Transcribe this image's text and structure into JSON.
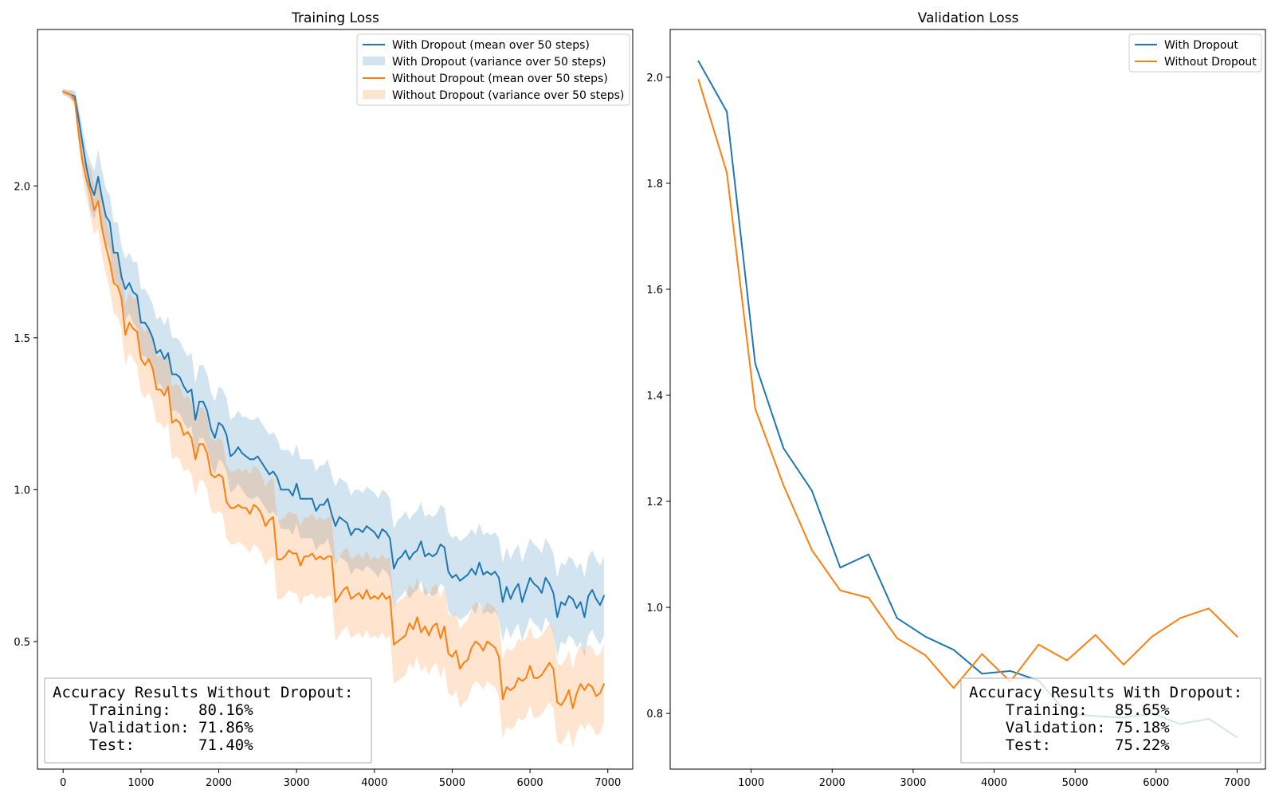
{
  "chart_data": [
    {
      "type": "line",
      "title": "Training Loss",
      "xlabel": "",
      "ylabel": "",
      "xlim": [
        -330,
        7320
      ],
      "ylim": [
        0.08,
        2.515
      ],
      "x_ticks": [
        0,
        1000,
        2000,
        3000,
        4000,
        5000,
        6000,
        7000
      ],
      "y_ticks": [
        0.5,
        1.0,
        1.5,
        2.0
      ],
      "x_tick_labels": [
        "0",
        "1000",
        "2000",
        "3000",
        "4000",
        "5000",
        "6000",
        "7000"
      ],
      "y_tick_labels": [
        "0.5",
        "1.0",
        "1.5",
        "2.0"
      ],
      "grid": false,
      "legend_position": "top-right",
      "x": [
        0,
        50,
        100,
        150,
        200,
        250,
        300,
        350,
        400,
        450,
        500,
        550,
        600,
        650,
        700,
        750,
        800,
        850,
        900,
        950,
        1000,
        1050,
        1100,
        1150,
        1200,
        1250,
        1300,
        1350,
        1400,
        1450,
        1500,
        1550,
        1600,
        1650,
        1700,
        1750,
        1800,
        1850,
        1900,
        1950,
        2000,
        2050,
        2100,
        2150,
        2200,
        2250,
        2300,
        2350,
        2400,
        2450,
        2500,
        2550,
        2600,
        2650,
        2700,
        2750,
        2800,
        2850,
        2900,
        2950,
        3000,
        3050,
        3100,
        3150,
        3200,
        3250,
        3300,
        3350,
        3400,
        3450,
        3500,
        3550,
        3600,
        3650,
        3700,
        3750,
        3800,
        3850,
        3900,
        3950,
        4000,
        4050,
        4100,
        4150,
        4200,
        4250,
        4300,
        4350,
        4400,
        4450,
        4500,
        4550,
        4600,
        4650,
        4700,
        4750,
        4800,
        4850,
        4900,
        4950,
        5000,
        5050,
        5100,
        5150,
        5200,
        5250,
        5300,
        5350,
        5400,
        5450,
        5500,
        5550,
        5600,
        5650,
        5700,
        5750,
        5800,
        5850,
        5900,
        5950,
        6000,
        6050,
        6100,
        6150,
        6200,
        6250,
        6300,
        6350,
        6400,
        6450,
        6500,
        6550,
        6600,
        6650,
        6700,
        6750,
        6800,
        6850,
        6900,
        6950
      ],
      "series": [
        {
          "name": "With Dropout (mean over 50 steps)",
          "kind": "line",
          "color": "#1f77b4",
          "values": [
            2.31,
            2.305,
            2.3,
            2.295,
            2.22,
            2.14,
            2.06,
            2.0,
            1.97,
            2.03,
            1.96,
            1.9,
            1.88,
            1.78,
            1.78,
            1.7,
            1.66,
            1.68,
            1.65,
            1.64,
            1.55,
            1.55,
            1.53,
            1.5,
            1.45,
            1.46,
            1.43,
            1.45,
            1.38,
            1.38,
            1.37,
            1.34,
            1.32,
            1.33,
            1.23,
            1.29,
            1.29,
            1.26,
            1.2,
            1.17,
            1.22,
            1.21,
            1.18,
            1.11,
            1.12,
            1.14,
            1.12,
            1.11,
            1.1,
            1.1,
            1.11,
            1.09,
            1.07,
            1.05,
            1.06,
            1.04,
            1.0,
            1.0,
            1.0,
            0.98,
            1.02,
            0.97,
            0.97,
            0.97,
            0.97,
            0.93,
            0.95,
            0.95,
            0.97,
            0.92,
            0.88,
            0.91,
            0.9,
            0.89,
            0.85,
            0.87,
            0.87,
            0.86,
            0.88,
            0.87,
            0.86,
            0.84,
            0.87,
            0.86,
            0.84,
            0.74,
            0.77,
            0.78,
            0.8,
            0.77,
            0.79,
            0.8,
            0.83,
            0.78,
            0.79,
            0.78,
            0.79,
            0.82,
            0.81,
            0.73,
            0.71,
            0.72,
            0.7,
            0.71,
            0.72,
            0.74,
            0.72,
            0.76,
            0.72,
            0.73,
            0.72,
            0.73,
            0.71,
            0.63,
            0.68,
            0.64,
            0.67,
            0.69,
            0.63,
            0.67,
            0.71,
            0.69,
            0.68,
            0.66,
            0.71,
            0.69,
            0.66,
            0.58,
            0.63,
            0.62,
            0.65,
            0.64,
            0.61,
            0.63,
            0.58,
            0.65,
            0.67,
            0.64,
            0.62,
            0.65
          ]
        },
        {
          "name": "With Dropout (variance over 50 steps)",
          "kind": "band",
          "color": "#1f77b4",
          "opacity": 0.2,
          "center_series": 0,
          "half_width": [
            0.01,
            0.01,
            0.015,
            0.02,
            0.04,
            0.05,
            0.06,
            0.08,
            0.08,
            0.09,
            0.09,
            0.09,
            0.09,
            0.1,
            0.1,
            0.1,
            0.1,
            0.1,
            0.1,
            0.11,
            0.11,
            0.11,
            0.11,
            0.11,
            0.11,
            0.11,
            0.11,
            0.12,
            0.12,
            0.12,
            0.12,
            0.12,
            0.12,
            0.12,
            0.12,
            0.12,
            0.12,
            0.12,
            0.12,
            0.12,
            0.12,
            0.12,
            0.12,
            0.12,
            0.12,
            0.12,
            0.12,
            0.13,
            0.13,
            0.13,
            0.13,
            0.13,
            0.13,
            0.13,
            0.13,
            0.13,
            0.13,
            0.13,
            0.13,
            0.13,
            0.13,
            0.13,
            0.13,
            0.13,
            0.13,
            0.13,
            0.13,
            0.13,
            0.13,
            0.13,
            0.13,
            0.13,
            0.13,
            0.13,
            0.13,
            0.13,
            0.13,
            0.13,
            0.13,
            0.13,
            0.13,
            0.13,
            0.13,
            0.13,
            0.13,
            0.13,
            0.13,
            0.13,
            0.13,
            0.13,
            0.13,
            0.13,
            0.13,
            0.13,
            0.13,
            0.13,
            0.13,
            0.13,
            0.13,
            0.13,
            0.13,
            0.13,
            0.13,
            0.13,
            0.13,
            0.13,
            0.13,
            0.13,
            0.13,
            0.13,
            0.13,
            0.13,
            0.13,
            0.13,
            0.13,
            0.13,
            0.13,
            0.13,
            0.13,
            0.13,
            0.13,
            0.13,
            0.13,
            0.13,
            0.13,
            0.13,
            0.13,
            0.13,
            0.13,
            0.13,
            0.13,
            0.13,
            0.13,
            0.13,
            0.13,
            0.13,
            0.13,
            0.13,
            0.13,
            0.13
          ]
        },
        {
          "name": "Without Dropout (mean over 50 steps)",
          "kind": "line",
          "color": "#ff7f0e",
          "values": [
            2.31,
            2.305,
            2.3,
            2.28,
            2.17,
            2.08,
            2.02,
            1.98,
            1.92,
            1.95,
            1.86,
            1.8,
            1.75,
            1.68,
            1.67,
            1.63,
            1.51,
            1.55,
            1.53,
            1.52,
            1.43,
            1.41,
            1.43,
            1.4,
            1.33,
            1.33,
            1.31,
            1.34,
            1.22,
            1.23,
            1.22,
            1.18,
            1.19,
            1.17,
            1.1,
            1.15,
            1.15,
            1.12,
            1.05,
            1.04,
            1.05,
            1.04,
            0.96,
            0.94,
            0.94,
            0.95,
            0.94,
            0.94,
            0.92,
            0.95,
            0.94,
            0.92,
            0.88,
            0.9,
            0.91,
            0.77,
            0.77,
            0.78,
            0.8,
            0.79,
            0.79,
            0.75,
            0.78,
            0.78,
            0.79,
            0.77,
            0.78,
            0.77,
            0.78,
            0.78,
            0.63,
            0.65,
            0.67,
            0.68,
            0.64,
            0.65,
            0.66,
            0.64,
            0.67,
            0.64,
            0.65,
            0.64,
            0.66,
            0.64,
            0.65,
            0.49,
            0.5,
            0.51,
            0.52,
            0.56,
            0.54,
            0.58,
            0.53,
            0.55,
            0.52,
            0.55,
            0.56,
            0.51,
            0.55,
            0.46,
            0.45,
            0.47,
            0.41,
            0.43,
            0.44,
            0.48,
            0.5,
            0.49,
            0.47,
            0.5,
            0.49,
            0.48,
            0.45,
            0.31,
            0.35,
            0.34,
            0.35,
            0.38,
            0.37,
            0.38,
            0.42,
            0.38,
            0.38,
            0.39,
            0.41,
            0.43,
            0.41,
            0.3,
            0.29,
            0.31,
            0.34,
            0.28,
            0.33,
            0.36,
            0.34,
            0.36,
            0.35,
            0.32,
            0.33,
            0.36
          ]
        },
        {
          "name": "Without Dropout (variance over 50 steps)",
          "kind": "band",
          "color": "#ff7f0e",
          "opacity": 0.2,
          "center_series": 2,
          "half_width": [
            0.01,
            0.01,
            0.015,
            0.02,
            0.04,
            0.05,
            0.06,
            0.08,
            0.08,
            0.09,
            0.09,
            0.09,
            0.09,
            0.1,
            0.1,
            0.1,
            0.1,
            0.1,
            0.1,
            0.11,
            0.11,
            0.11,
            0.11,
            0.11,
            0.11,
            0.11,
            0.11,
            0.12,
            0.12,
            0.12,
            0.12,
            0.12,
            0.12,
            0.12,
            0.12,
            0.12,
            0.12,
            0.12,
            0.12,
            0.12,
            0.12,
            0.12,
            0.12,
            0.12,
            0.12,
            0.12,
            0.12,
            0.13,
            0.13,
            0.13,
            0.13,
            0.13,
            0.13,
            0.13,
            0.13,
            0.13,
            0.13,
            0.13,
            0.13,
            0.13,
            0.13,
            0.13,
            0.13,
            0.13,
            0.13,
            0.13,
            0.13,
            0.13,
            0.13,
            0.13,
            0.13,
            0.13,
            0.13,
            0.13,
            0.13,
            0.13,
            0.13,
            0.13,
            0.13,
            0.13,
            0.13,
            0.13,
            0.13,
            0.13,
            0.13,
            0.13,
            0.13,
            0.13,
            0.13,
            0.13,
            0.13,
            0.13,
            0.13,
            0.13,
            0.13,
            0.13,
            0.13,
            0.13,
            0.13,
            0.13,
            0.13,
            0.13,
            0.13,
            0.13,
            0.13,
            0.13,
            0.13,
            0.13,
            0.13,
            0.13,
            0.13,
            0.13,
            0.13,
            0.13,
            0.13,
            0.13,
            0.13,
            0.13,
            0.13,
            0.13,
            0.13,
            0.13,
            0.13,
            0.13,
            0.13,
            0.13,
            0.13,
            0.13,
            0.13,
            0.13,
            0.13,
            0.13,
            0.13,
            0.13,
            0.13,
            0.13,
            0.13,
            0.13,
            0.13,
            0.13
          ]
        }
      ],
      "annotation": {
        "box_position": "bottom-left",
        "lines": [
          "Accuracy Results Without Dropout:",
          "    Training:   80.16%",
          "    Validation: 71.86%",
          "    Test:       71.40%"
        ]
      }
    },
    {
      "type": "line",
      "title": "Validation Loss",
      "xlabel": "",
      "ylabel": "",
      "xlim": [
        0,
        7350
      ],
      "ylim": [
        0.695,
        2.09
      ],
      "x_ticks": [
        1000,
        2000,
        3000,
        4000,
        5000,
        6000,
        7000
      ],
      "y_ticks": [
        0.8,
        1.0,
        1.2,
        1.4,
        1.6,
        1.8,
        2.0
      ],
      "x_tick_labels": [
        "1000",
        "2000",
        "3000",
        "4000",
        "5000",
        "6000",
        "7000"
      ],
      "y_tick_labels": [
        "0.8",
        "1.0",
        "1.2",
        "1.4",
        "1.6",
        "1.8",
        "2.0"
      ],
      "grid": false,
      "legend_position": "top-right",
      "x": [
        350,
        700,
        1050,
        1400,
        1750,
        2100,
        2450,
        2800,
        3150,
        3500,
        3850,
        4200,
        4550,
        4900,
        5250,
        5600,
        5950,
        6300,
        6650,
        7000
      ],
      "series": [
        {
          "name": "With Dropout",
          "kind": "line",
          "color": "#1f77b4",
          "values": [
            2.03,
            1.935,
            1.46,
            1.3,
            1.22,
            1.075,
            1.1,
            0.98,
            0.945,
            0.92,
            0.875,
            0.88,
            0.862,
            0.8,
            0.795,
            0.792,
            0.8,
            0.78,
            0.79,
            0.755
          ]
        },
        {
          "name": "Without Dropout",
          "kind": "line",
          "color": "#ff7f0e",
          "values": [
            1.995,
            1.82,
            1.375,
            1.23,
            1.108,
            1.032,
            1.018,
            0.942,
            0.91,
            0.848,
            0.912,
            0.86,
            0.93,
            0.9,
            0.948,
            0.892,
            0.945,
            0.98,
            0.998,
            0.945
          ]
        }
      ],
      "annotation": {
        "box_position": "bottom-right",
        "lines": [
          "Accuracy Results With Dropout:",
          "    Training:   85.65%",
          "    Validation: 75.18%",
          "    Test:       75.22%"
        ]
      }
    }
  ]
}
